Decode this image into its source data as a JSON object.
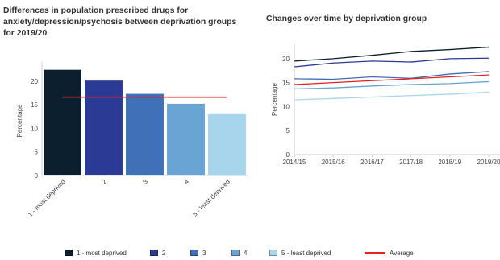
{
  "chart_data": [
    {
      "type": "bar",
      "title": "Differences in population prescribed drugs for anxiety/depression/psychosis between deprivation groups for 2019/20",
      "ylabel": "Percentage",
      "categories": [
        "1 - most deprived",
        "2",
        "3",
        "4",
        "5 - least deprived"
      ],
      "values": [
        22.4,
        20.1,
        17.3,
        15.2,
        13.0
      ],
      "colors": [
        "#0b1f2e",
        "#2b3a94",
        "#3f70b8",
        "#6aa4d4",
        "#a7d5eb"
      ],
      "average": 16.6,
      "average_color": "#e52222",
      "ylim": [
        0,
        23.2
      ],
      "yticks": [
        0,
        5,
        10,
        15,
        20
      ],
      "grid": false
    },
    {
      "type": "line",
      "title": "Changes over time by deprivation group",
      "ylabel": "Percentage",
      "x": [
        "2014/15",
        "2015/16",
        "2016/17",
        "2017/18",
        "2018/19",
        "2019/20"
      ],
      "ylim": [
        0,
        23
      ],
      "yticks": [
        0,
        5,
        10,
        15,
        20
      ],
      "grid": false,
      "series": [
        {
          "name": "1 - most deprived",
          "color": "#0b1f2e",
          "values": [
            19.5,
            20.0,
            20.7,
            21.5,
            21.9,
            22.4
          ]
        },
        {
          "name": "2",
          "color": "#2b3a94",
          "values": [
            18.3,
            19.1,
            19.5,
            19.3,
            20.0,
            20.1
          ]
        },
        {
          "name": "3",
          "color": "#3f70b8",
          "values": [
            15.8,
            15.7,
            16.2,
            15.9,
            16.8,
            17.3
          ]
        },
        {
          "name": "4",
          "color": "#6aa4d4",
          "values": [
            13.7,
            13.9,
            14.3,
            14.6,
            14.8,
            15.2
          ]
        },
        {
          "name": "5 - least deprived",
          "color": "#a7d5eb",
          "values": [
            11.4,
            11.7,
            12.0,
            12.3,
            12.6,
            13.0
          ]
        },
        {
          "name": "Average",
          "color": "#e52222",
          "values": [
            14.6,
            15.0,
            15.4,
            15.8,
            16.2,
            16.6
          ]
        }
      ]
    }
  ],
  "legend": [
    {
      "label": "1 - most deprived",
      "color": "#0b1f2e",
      "kind": "box"
    },
    {
      "label": "2",
      "color": "#2b3a94",
      "kind": "box"
    },
    {
      "label": "3",
      "color": "#3f70b8",
      "kind": "box"
    },
    {
      "label": "4",
      "color": "#6aa4d4",
      "kind": "box"
    },
    {
      "label": "5 - least deprived",
      "color": "#a7d5eb",
      "kind": "box"
    },
    {
      "label": "Average",
      "color": "#e52222",
      "kind": "line"
    }
  ]
}
